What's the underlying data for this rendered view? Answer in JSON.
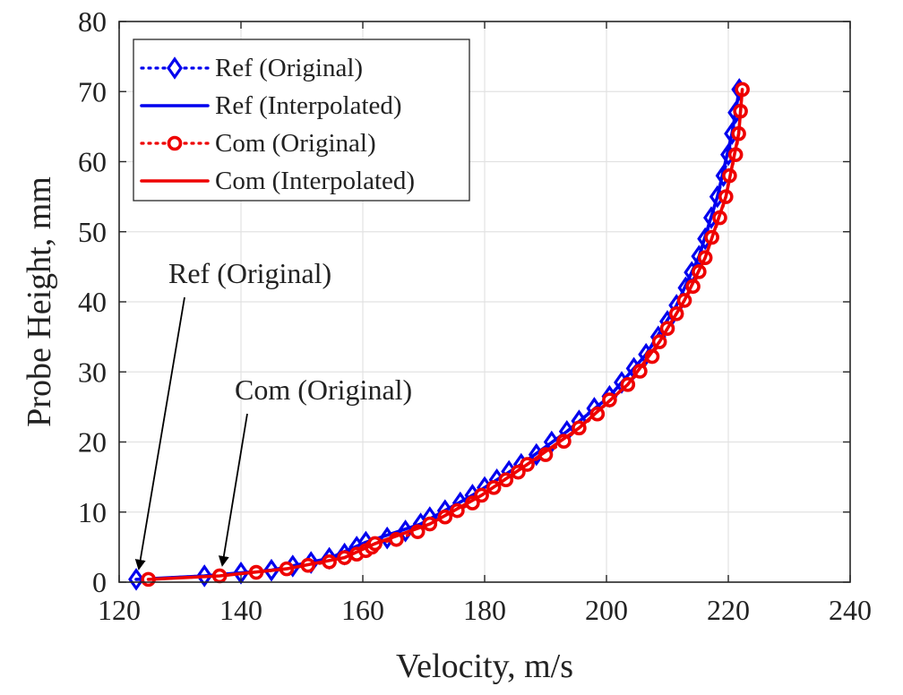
{
  "chart_data": {
    "type": "line",
    "title": "",
    "xlabel": "Velocity, m/s",
    "ylabel": "Probe Height, mm",
    "xlim": [
      120,
      240
    ],
    "ylim": [
      0,
      80
    ],
    "xticks": [
      120,
      140,
      160,
      180,
      200,
      220,
      240
    ],
    "yticks": [
      0,
      10,
      20,
      30,
      40,
      50,
      60,
      70,
      80
    ],
    "xtick_labels": [
      "120",
      "140",
      "160",
      "180",
      "200",
      "220",
      "240"
    ],
    "ytick_labels": [
      "0",
      "10",
      "20",
      "30",
      "40",
      "50",
      "60",
      "70",
      "80"
    ],
    "grid": true,
    "legend_position": "top-left",
    "colors": {
      "ref": "#0000ee",
      "com": "#ee0000"
    },
    "series": [
      {
        "name": "Ref (Original)",
        "color": "#0000ee",
        "style": "dotted",
        "marker": "diamond",
        "points": [
          [
            122.8,
            0.4
          ],
          [
            134.0,
            0.9
          ],
          [
            140.0,
            1.3
          ],
          [
            145.0,
            1.7
          ],
          [
            148.5,
            2.3
          ],
          [
            151.5,
            2.8
          ],
          [
            154.5,
            3.4
          ],
          [
            157.0,
            4.0
          ],
          [
            159.0,
            5.0
          ],
          [
            160.5,
            5.7
          ],
          [
            164.0,
            6.3
          ],
          [
            167.0,
            7.3
          ],
          [
            169.5,
            8.3
          ],
          [
            171.0,
            9.2
          ],
          [
            173.5,
            10.2
          ],
          [
            176.0,
            11.3
          ],
          [
            178.0,
            12.4
          ],
          [
            180.0,
            13.5
          ],
          [
            182.0,
            14.6
          ],
          [
            184.0,
            15.8
          ],
          [
            186.0,
            16.8
          ],
          [
            188.5,
            18.2
          ],
          [
            191.0,
            20.0
          ],
          [
            193.5,
            21.5
          ],
          [
            195.5,
            23.0
          ],
          [
            198.0,
            24.8
          ],
          [
            200.5,
            26.5
          ],
          [
            202.5,
            28.5
          ],
          [
            204.5,
            30.5
          ],
          [
            206.5,
            32.5
          ],
          [
            208.5,
            35.0
          ],
          [
            210.0,
            37.2
          ],
          [
            211.5,
            39.5
          ],
          [
            213.0,
            42.0
          ],
          [
            214.0,
            44.2
          ],
          [
            215.2,
            46.5
          ],
          [
            216.2,
            49.0
          ],
          [
            217.2,
            52.0
          ],
          [
            218.2,
            55.0
          ],
          [
            219.2,
            58.0
          ],
          [
            220.0,
            61.0
          ],
          [
            220.6,
            64.0
          ],
          [
            221.2,
            67.0
          ],
          [
            221.8,
            70.3
          ]
        ]
      },
      {
        "name": "Ref (Interpolated)",
        "color": "#0000ee",
        "style": "solid",
        "marker": "none",
        "points": [
          [
            122.8,
            0.4
          ],
          [
            134.0,
            0.9
          ],
          [
            145.0,
            1.7
          ],
          [
            154.5,
            3.4
          ],
          [
            160.5,
            5.7
          ],
          [
            169.5,
            8.3
          ],
          [
            178.0,
            12.4
          ],
          [
            186.0,
            16.8
          ],
          [
            193.5,
            21.5
          ],
          [
            200.5,
            26.5
          ],
          [
            206.5,
            32.5
          ],
          [
            211.5,
            39.5
          ],
          [
            215.2,
            46.5
          ],
          [
            218.2,
            55.0
          ],
          [
            220.6,
            64.0
          ],
          [
            221.8,
            70.3
          ]
        ]
      },
      {
        "name": "Com (Original)",
        "color": "#ee0000",
        "style": "dotted",
        "marker": "circle",
        "points": [
          [
            124.8,
            0.4
          ],
          [
            136.5,
            0.9
          ],
          [
            142.5,
            1.4
          ],
          [
            147.5,
            1.9
          ],
          [
            151.0,
            2.4
          ],
          [
            154.5,
            2.9
          ],
          [
            157.0,
            3.5
          ],
          [
            159.0,
            4.0
          ],
          [
            160.5,
            4.5
          ],
          [
            161.5,
            5.0
          ],
          [
            162.0,
            5.5
          ],
          [
            165.5,
            6.1
          ],
          [
            169.0,
            7.2
          ],
          [
            171.0,
            8.3
          ],
          [
            173.5,
            9.3
          ],
          [
            175.5,
            10.2
          ],
          [
            178.0,
            11.3
          ],
          [
            179.5,
            12.4
          ],
          [
            181.5,
            13.5
          ],
          [
            183.5,
            14.6
          ],
          [
            185.5,
            15.7
          ],
          [
            187.0,
            16.8
          ],
          [
            190.0,
            18.2
          ],
          [
            193.0,
            20.1
          ],
          [
            195.5,
            22.0
          ],
          [
            198.5,
            24.0
          ],
          [
            200.5,
            26.0
          ],
          [
            203.5,
            28.2
          ],
          [
            205.5,
            30.1
          ],
          [
            207.5,
            32.2
          ],
          [
            208.7,
            34.3
          ],
          [
            210.0,
            36.2
          ],
          [
            211.5,
            38.3
          ],
          [
            212.8,
            40.2
          ],
          [
            214.2,
            42.2
          ],
          [
            215.2,
            44.3
          ],
          [
            216.2,
            46.3
          ],
          [
            217.3,
            49.2
          ],
          [
            218.6,
            52.0
          ],
          [
            219.6,
            55.0
          ],
          [
            220.2,
            58.0
          ],
          [
            221.2,
            61.0
          ],
          [
            221.7,
            64.0
          ],
          [
            222.0,
            67.2
          ],
          [
            222.3,
            70.3
          ]
        ]
      },
      {
        "name": "Com (Interpolated)",
        "color": "#ee0000",
        "style": "solid",
        "marker": "none",
        "points": [
          [
            124.8,
            0.4
          ],
          [
            136.5,
            0.9
          ],
          [
            147.5,
            1.9
          ],
          [
            157.0,
            3.5
          ],
          [
            162.0,
            5.5
          ],
          [
            171.0,
            8.3
          ],
          [
            179.5,
            12.4
          ],
          [
            187.0,
            16.8
          ],
          [
            195.5,
            22.0
          ],
          [
            203.5,
            28.2
          ],
          [
            208.7,
            34.3
          ],
          [
            212.8,
            40.2
          ],
          [
            216.2,
            46.3
          ],
          [
            219.6,
            55.0
          ],
          [
            221.7,
            64.0
          ],
          [
            222.3,
            70.3
          ]
        ]
      }
    ],
    "annotations": [
      {
        "text": "Ref (Original)",
        "target": [
          122.8,
          0.4
        ]
      },
      {
        "text": "Com (Original)",
        "target": [
          136.5,
          0.9
        ]
      }
    ]
  }
}
